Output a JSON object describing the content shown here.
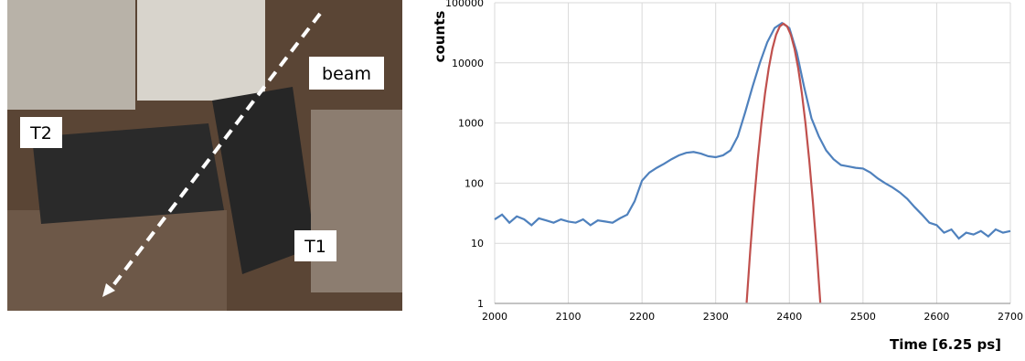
{
  "photo": {
    "labels": [
      "T2",
      "beam",
      "T1"
    ]
  },
  "chart_data": {
    "type": "line",
    "x_label": "Time [6.25 ps]",
    "y_label": "counts",
    "log_y": true,
    "grid": true,
    "xlim": [
      2000,
      2700
    ],
    "xticks": [
      2000,
      2100,
      2200,
      2300,
      2400,
      2500,
      2600,
      2700
    ],
    "ylim": [
      1,
      100000
    ],
    "yticks": [
      1,
      10,
      100,
      1000,
      10000,
      100000
    ],
    "series": [
      {
        "color": "#4f81bd",
        "x": [
          2000,
          2010,
          2020,
          2030,
          2040,
          2050,
          2060,
          2070,
          2080,
          2090,
          2100,
          2110,
          2120,
          2130,
          2140,
          2150,
          2160,
          2170,
          2180,
          2190,
          2200,
          2210,
          2220,
          2230,
          2240,
          2250,
          2260,
          2270,
          2280,
          2290,
          2300,
          2310,
          2320,
          2330,
          2340,
          2350,
          2360,
          2370,
          2380,
          2390,
          2400,
          2410,
          2420,
          2430,
          2440,
          2450,
          2460,
          2470,
          2480,
          2490,
          2500,
          2510,
          2520,
          2530,
          2540,
          2550,
          2560,
          2570,
          2580,
          2590,
          2600,
          2610,
          2620,
          2630,
          2640,
          2650,
          2660,
          2670,
          2680,
          2690,
          2700
        ],
        "values": [
          25,
          30,
          22,
          28,
          25,
          20,
          26,
          24,
          22,
          25,
          23,
          22,
          25,
          20,
          24,
          23,
          22,
          26,
          30,
          50,
          110,
          150,
          180,
          210,
          250,
          290,
          320,
          330,
          310,
          280,
          270,
          290,
          350,
          600,
          1500,
          4000,
          10000,
          22000,
          38000,
          46000,
          38000,
          15000,
          4000,
          1200,
          600,
          350,
          250,
          200,
          190,
          180,
          175,
          150,
          120,
          100,
          85,
          70,
          55,
          40,
          30,
          22,
          20,
          15,
          17,
          12,
          15,
          14,
          16,
          13,
          17,
          15,
          16
        ]
      },
      {
        "color": "#c0504d",
        "x": [
          2342,
          2347,
          2352,
          2357,
          2362,
          2367,
          2372,
          2377,
          2382,
          2387,
          2392,
          2397,
          2402,
          2407,
          2412,
          2417,
          2422,
          2427,
          2432,
          2437,
          2442
        ],
        "values": [
          1.03,
          7.8,
          48,
          240,
          962,
          3115,
          8145,
          17200,
          29350,
          40440,
          45000,
          40440,
          29350,
          17200,
          8145,
          3115,
          962,
          240,
          48,
          7.8,
          1.03
        ]
      }
    ]
  }
}
